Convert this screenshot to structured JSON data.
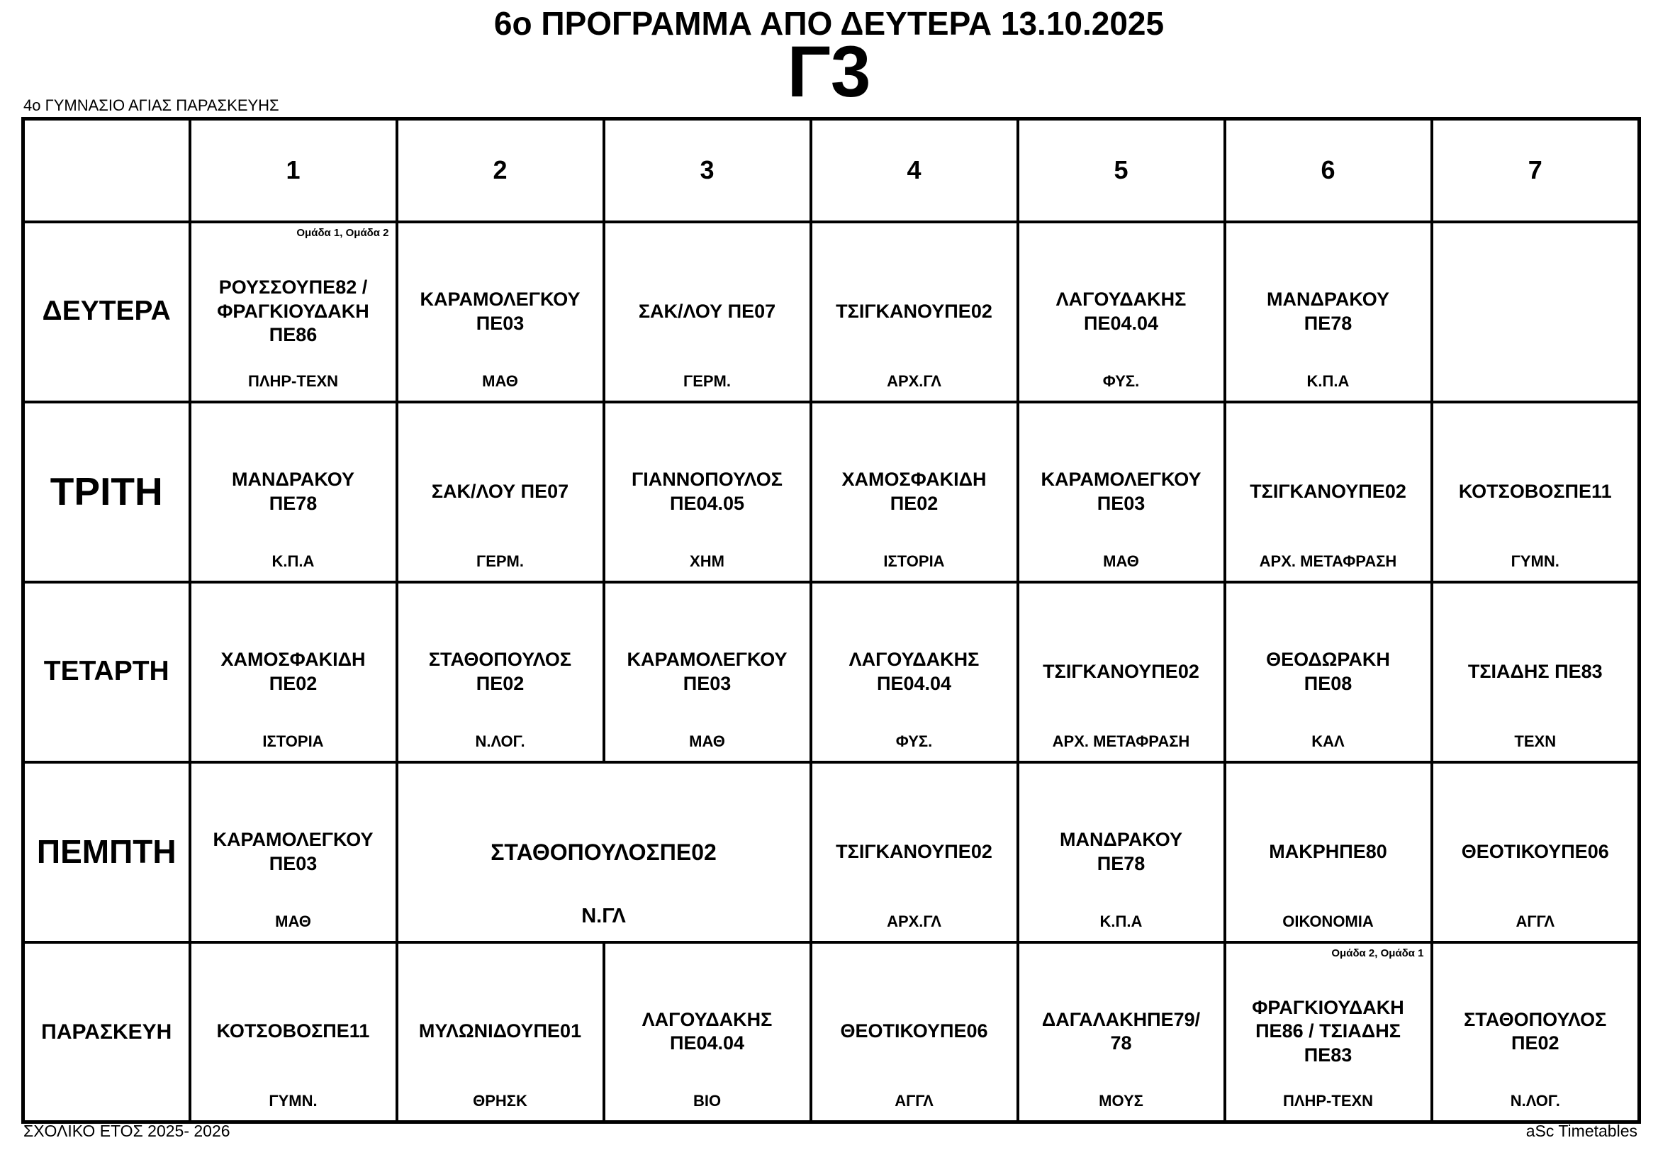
{
  "page": {
    "title": "6ο ΠΡΟΓΡΑΜΜΑ ΑΠΟ ΔΕΥΤΕΡΑ 13.10.2025",
    "class_name": "Γ3",
    "school_name": "4ο ΓΥΜΝΑΣΙΟ ΑΓΙΑΣ ΠΑΡΑΣΚΕΥΗΣ",
    "footer_left": "ΣΧΟΛΙΚΟ ΕΤΟΣ 2025- 2026",
    "footer_right": "aSc Timetables"
  },
  "timetable": {
    "period_headers": [
      "1",
      "2",
      "3",
      "4",
      "5",
      "6",
      "7"
    ],
    "days": [
      {
        "label": "ΔΕΥΤΕΡΑ",
        "cells": [
          {
            "note": "Ομάδα 1, Ομάδα 2",
            "teacher": "ΡΟΥΣΣΟΥΠΕ82 / ΦΡΑΓΚΙΟΥΔΑΚΗ ΠΕ86",
            "subject": "ΠΛΗΡ-ΤΕΧΝ",
            "span": 1
          },
          {
            "teacher": "ΚΑΡΑΜΟΛΕΓΚΟΥ ΠΕ03",
            "subject": "ΜΑΘ",
            "span": 1
          },
          {
            "teacher": "ΣΑΚ/ΛΟΥ ΠΕ07",
            "subject": "ΓΕΡΜ.",
            "span": 1
          },
          {
            "teacher": "ΤΣΙΓΚΑΝΟΥΠΕ02",
            "subject": "ΑΡΧ.ΓΛ",
            "span": 1
          },
          {
            "teacher": "ΛΑΓΟΥΔΑΚΗΣ ΠΕ04.04",
            "subject": "ΦΥΣ.",
            "span": 1
          },
          {
            "teacher": "ΜΑΝΔΡΑΚΟΥ ΠΕ78",
            "subject": "Κ.Π.Α",
            "span": 1
          },
          {
            "teacher": "",
            "subject": "",
            "span": 1
          }
        ]
      },
      {
        "label": "ΤΡΙΤΗ",
        "cells": [
          {
            "teacher": "ΜΑΝΔΡΑΚΟΥ ΠΕ78",
            "subject": "Κ.Π.Α",
            "span": 1
          },
          {
            "teacher": "ΣΑΚ/ΛΟΥ ΠΕ07",
            "subject": "ΓΕΡΜ.",
            "span": 1
          },
          {
            "teacher": "ΓΙΑΝΝΟΠΟΥΛΟΣ ΠΕ04.05",
            "subject": "ΧΗΜ",
            "span": 1
          },
          {
            "teacher": "ΧΑΜΟΣΦΑΚΙΔΗ ΠΕ02",
            "subject": "ΙΣΤΟΡΙΑ",
            "span": 1
          },
          {
            "teacher": "ΚΑΡΑΜΟΛΕΓΚΟΥ ΠΕ03",
            "subject": "ΜΑΘ",
            "span": 1
          },
          {
            "teacher": "ΤΣΙΓΚΑΝΟΥΠΕ02",
            "subject": "ΑΡΧ. ΜΕΤΑΦΡΑΣΗ",
            "span": 1
          },
          {
            "teacher": "ΚΟΤΣΟΒΟΣΠΕ11",
            "subject": "ΓΥΜΝ.",
            "span": 1
          }
        ]
      },
      {
        "label": "ΤΕΤΑΡΤΗ",
        "cells": [
          {
            "teacher": "ΧΑΜΟΣΦΑΚΙΔΗ ΠΕ02",
            "subject": "ΙΣΤΟΡΙΑ",
            "span": 1
          },
          {
            "teacher": "ΣΤΑΘΟΠΟΥΛΟΣ ΠΕ02",
            "subject": "Ν.ΛΟΓ.",
            "span": 1
          },
          {
            "teacher": "ΚΑΡΑΜΟΛΕΓΚΟΥ ΠΕ03",
            "subject": "ΜΑΘ",
            "span": 1
          },
          {
            "teacher": "ΛΑΓΟΥΔΑΚΗΣ ΠΕ04.04",
            "subject": "ΦΥΣ.",
            "span": 1
          },
          {
            "teacher": "ΤΣΙΓΚΑΝΟΥΠΕ02",
            "subject": "ΑΡΧ. ΜΕΤΑΦΡΑΣΗ",
            "span": 1
          },
          {
            "teacher": "ΘΕΟΔΩΡΑΚΗ ΠΕ08",
            "subject": "ΚΑΛ",
            "span": 1
          },
          {
            "teacher": "ΤΣΙΑΔΗΣ ΠΕ83",
            "subject": "ΤΕΧΝ",
            "span": 1
          }
        ]
      },
      {
        "label": "ΠΕΜΠΤΗ",
        "cells": [
          {
            "teacher": "ΚΑΡΑΜΟΛΕΓΚΟΥ ΠΕ03",
            "subject": "ΜΑΘ",
            "span": 1
          },
          {
            "teacher": "ΣΤΑΘΟΠΟΥΛΟΣΠΕ02",
            "subject": "Ν.ΓΛ",
            "span": 2
          },
          {
            "teacher": "ΤΣΙΓΚΑΝΟΥΠΕ02",
            "subject": "ΑΡΧ.ΓΛ",
            "span": 1
          },
          {
            "teacher": "ΜΑΝΔΡΑΚΟΥ ΠΕ78",
            "subject": "Κ.Π.Α",
            "span": 1
          },
          {
            "teacher": "ΜΑΚΡΗΠΕ80",
            "subject": "ΟΙΚΟΝΟΜΙΑ",
            "span": 1
          },
          {
            "teacher": "ΘΕΟΤΙΚΟΥΠΕ06",
            "subject": "ΑΓΓΛ",
            "span": 1
          }
        ]
      },
      {
        "label": "ΠΑΡΑΣΚΕΥΗ",
        "cells": [
          {
            "teacher": "ΚΟΤΣΟΒΟΣΠΕ11",
            "subject": "ΓΥΜΝ.",
            "span": 1
          },
          {
            "teacher": "ΜΥΛΩΝΙΔΟΥΠΕ01",
            "subject": "ΘΡΗΣΚ",
            "span": 1
          },
          {
            "teacher": "ΛΑΓΟΥΔΑΚΗΣ ΠΕ04.04",
            "subject": "ΒΙΟ",
            "span": 1
          },
          {
            "teacher": "ΘΕΟΤΙΚΟΥΠΕ06",
            "subject": "ΑΓΓΛ",
            "span": 1
          },
          {
            "teacher": "ΔΑΓΑΛΑΚΗΠΕ79/ 78",
            "subject": "ΜΟΥΣ",
            "span": 1
          },
          {
            "note": "Ομάδα 2, Ομάδα 1",
            "teacher": "ΦΡΑΓΚΙΟΥΔΑΚΗ ΠΕ86 / ΤΣΙΑΔΗΣ ΠΕ83",
            "subject": "ΠΛΗΡ-ΤΕΧΝ",
            "span": 1
          },
          {
            "teacher": "ΣΤΑΘΟΠΟΥΛΟΣ ΠΕ02",
            "subject": "Ν.ΛΟΓ.",
            "span": 1
          }
        ]
      }
    ]
  }
}
